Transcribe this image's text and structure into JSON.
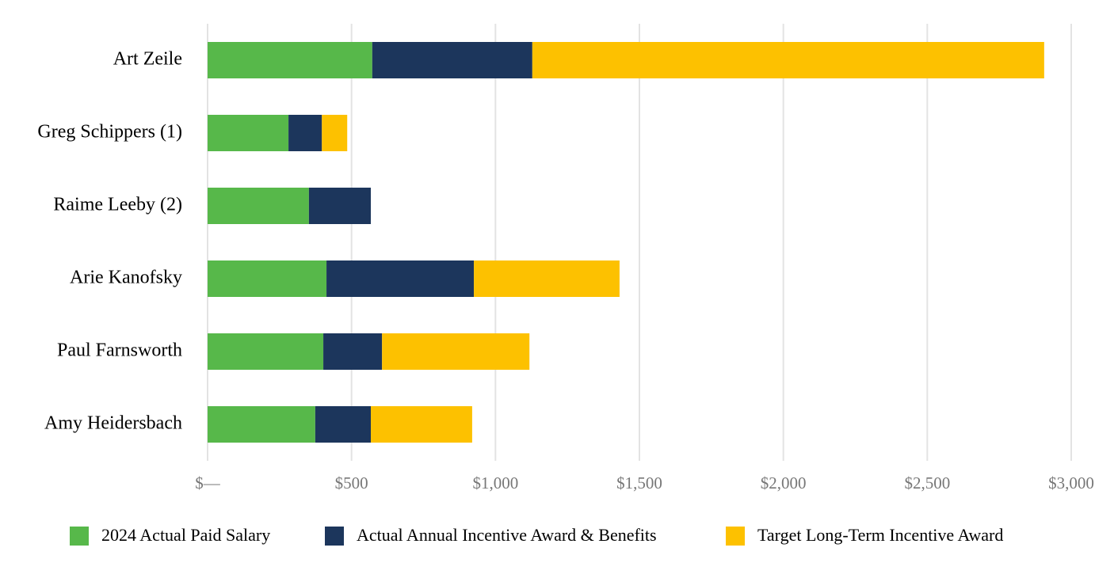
{
  "chart_data": {
    "type": "stacked-bar-horizontal",
    "categories": [
      "Art Zeile",
      "Greg Schippers (1)",
      "Raime Leeby (2)",
      "Arie Kanofsky",
      "Paul Farnsworth",
      "Amy Heidersbach"
    ],
    "series": [
      {
        "name": "2024 Actual Paid Salary",
        "color": "#57b84a",
        "values": [
          572,
          281,
          352,
          413,
          402,
          374
        ]
      },
      {
        "name": "Actual Annual Incentive Award & Benefits",
        "color": "#1c365c",
        "values": [
          556,
          116,
          215,
          512,
          204,
          193
        ]
      },
      {
        "name": "Target Long-Term Incentive Award",
        "color": "#fdc100",
        "values": [
          1778,
          88,
          0,
          506,
          512,
          352
        ]
      }
    ],
    "xlim": [
      0,
      3000
    ],
    "xticks": [
      {
        "value": 0,
        "label": "$—"
      },
      {
        "value": 500,
        "label": "$500"
      },
      {
        "value": 1000,
        "label": "$1,000"
      },
      {
        "value": 1500,
        "label": "$1,500"
      },
      {
        "value": 2000,
        "label": "$2,000"
      },
      {
        "value": 2500,
        "label": "$2,500"
      },
      {
        "value": 3000,
        "label": "$3,000"
      }
    ],
    "grid": true,
    "legend": "bottom"
  }
}
